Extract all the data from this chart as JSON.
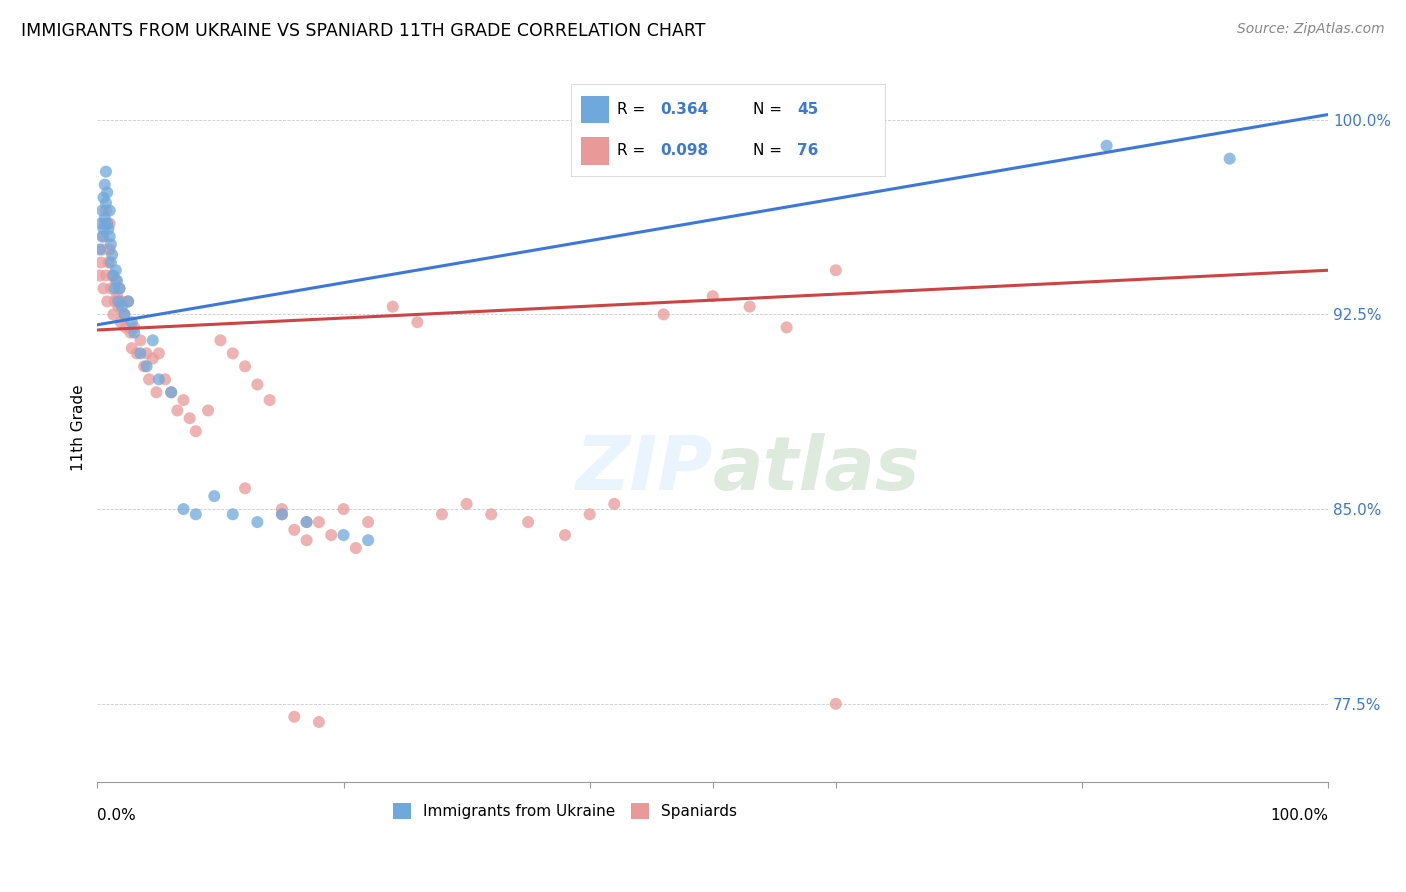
{
  "title": "IMMIGRANTS FROM UKRAINE VS SPANIARD 11TH GRADE CORRELATION CHART",
  "source": "Source: ZipAtlas.com",
  "ylabel": "11th Grade",
  "xlim": [
    0.0,
    1.0
  ],
  "ylim": [
    0.745,
    1.018
  ],
  "yticks": [
    0.775,
    0.85,
    0.925,
    1.0
  ],
  "ytick_labels": [
    "77.5%",
    "85.0%",
    "92.5%",
    "100.0%"
  ],
  "ukraine_color": "#6fa8dc",
  "spaniard_color": "#ea9999",
  "ukraine_line_color": "#3c78d8",
  "spaniard_line_color": "#cc4444",
  "ukraine_x": [
    0.002,
    0.003,
    0.004,
    0.004,
    0.005,
    0.005,
    0.006,
    0.006,
    0.007,
    0.007,
    0.008,
    0.008,
    0.009,
    0.01,
    0.01,
    0.011,
    0.011,
    0.012,
    0.013,
    0.014,
    0.015,
    0.016,
    0.017,
    0.018,
    0.02,
    0.022,
    0.025,
    0.028,
    0.03,
    0.035,
    0.04,
    0.045,
    0.05,
    0.06,
    0.07,
    0.08,
    0.095,
    0.11,
    0.13,
    0.15,
    0.17,
    0.2,
    0.22,
    0.82,
    0.92
  ],
  "ukraine_y": [
    0.95,
    0.96,
    0.965,
    0.955,
    0.97,
    0.958,
    0.975,
    0.962,
    0.968,
    0.98,
    0.972,
    0.96,
    0.958,
    0.965,
    0.955,
    0.952,
    0.945,
    0.948,
    0.94,
    0.935,
    0.942,
    0.938,
    0.93,
    0.935,
    0.928,
    0.925,
    0.93,
    0.922,
    0.918,
    0.91,
    0.905,
    0.915,
    0.9,
    0.895,
    0.85,
    0.848,
    0.855,
    0.848,
    0.845,
    0.848,
    0.845,
    0.84,
    0.838,
    0.99,
    0.985
  ],
  "spaniard_x": [
    0.002,
    0.003,
    0.004,
    0.005,
    0.005,
    0.006,
    0.007,
    0.007,
    0.008,
    0.009,
    0.01,
    0.01,
    0.011,
    0.012,
    0.013,
    0.014,
    0.015,
    0.016,
    0.017,
    0.018,
    0.019,
    0.02,
    0.022,
    0.023,
    0.025,
    0.027,
    0.028,
    0.03,
    0.032,
    0.035,
    0.038,
    0.04,
    0.042,
    0.045,
    0.048,
    0.05,
    0.055,
    0.06,
    0.065,
    0.07,
    0.075,
    0.08,
    0.09,
    0.1,
    0.11,
    0.12,
    0.13,
    0.14,
    0.15,
    0.16,
    0.17,
    0.18,
    0.2,
    0.22,
    0.24,
    0.26,
    0.28,
    0.3,
    0.32,
    0.35,
    0.38,
    0.4,
    0.42,
    0.46,
    0.5,
    0.53,
    0.56,
    0.6,
    0.12,
    0.15,
    0.17,
    0.19,
    0.21,
    0.6,
    0.16,
    0.18
  ],
  "spaniard_y": [
    0.94,
    0.945,
    0.95,
    0.955,
    0.935,
    0.96,
    0.94,
    0.965,
    0.93,
    0.945,
    0.95,
    0.96,
    0.935,
    0.94,
    0.925,
    0.93,
    0.938,
    0.932,
    0.928,
    0.935,
    0.922,
    0.93,
    0.925,
    0.92,
    0.93,
    0.918,
    0.912,
    0.92,
    0.91,
    0.915,
    0.905,
    0.91,
    0.9,
    0.908,
    0.895,
    0.91,
    0.9,
    0.895,
    0.888,
    0.892,
    0.885,
    0.88,
    0.888,
    0.915,
    0.91,
    0.905,
    0.898,
    0.892,
    0.848,
    0.842,
    0.838,
    0.845,
    0.85,
    0.845,
    0.928,
    0.922,
    0.848,
    0.852,
    0.848,
    0.845,
    0.84,
    0.848,
    0.852,
    0.925,
    0.932,
    0.928,
    0.92,
    0.942,
    0.858,
    0.85,
    0.845,
    0.84,
    0.835,
    0.775,
    0.77,
    0.768
  ]
}
